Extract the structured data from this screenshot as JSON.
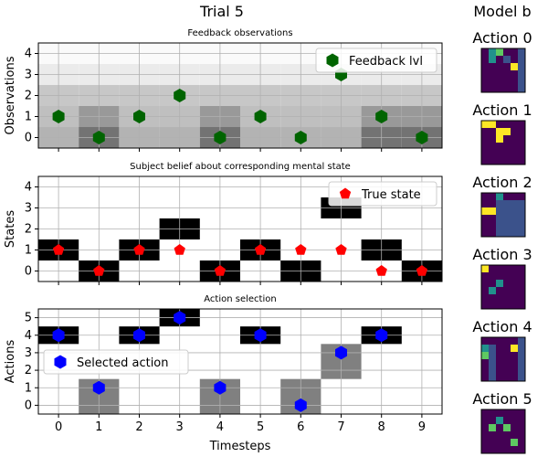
{
  "figure": {
    "title": "Trial 5"
  },
  "chart_data": [
    {
      "type": "scatter",
      "title": "Feedback observations",
      "ylabel": "Observations",
      "xlabel": "",
      "xlim": [
        -0.5,
        9.5
      ],
      "ylim": [
        -0.5,
        4.5
      ],
      "yticks": [
        0,
        1,
        2,
        3,
        4
      ],
      "grid": true,
      "legend": {
        "position": "top-right",
        "label": "Feedback lvl"
      },
      "background_columns": [
        {
          "x": 0,
          "shades": [
            0.7,
            0.75,
            0.78,
            0.92,
            0.98
          ]
        },
        {
          "x": 1,
          "shades": [
            0.45,
            0.6,
            0.78,
            0.92,
            0.98
          ]
        },
        {
          "x": 2,
          "shades": [
            0.7,
            0.75,
            0.78,
            0.92,
            0.98
          ]
        },
        {
          "x": 3,
          "shades": [
            0.7,
            0.75,
            0.78,
            0.92,
            0.98
          ]
        },
        {
          "x": 4,
          "shades": [
            0.45,
            0.6,
            0.78,
            0.92,
            0.98
          ]
        },
        {
          "x": 5,
          "shades": [
            0.7,
            0.75,
            0.78,
            0.92,
            0.98
          ]
        },
        {
          "x": 6,
          "shades": [
            0.7,
            0.75,
            0.78,
            0.92,
            0.98
          ]
        },
        {
          "x": 7,
          "shades": [
            0.7,
            0.75,
            0.78,
            0.92,
            0.98
          ]
        },
        {
          "x": 8,
          "shades": [
            0.45,
            0.6,
            0.78,
            0.92,
            0.98
          ]
        },
        {
          "x": 9,
          "shades": [
            0.45,
            0.6,
            0.78,
            0.92,
            0.98
          ]
        }
      ],
      "series": [
        {
          "name": "Feedback lvl",
          "marker": "hexagon",
          "color": "#006400",
          "x": [
            0,
            1,
            2,
            3,
            4,
            5,
            6,
            7,
            8,
            9
          ],
          "y": [
            1,
            0,
            1,
            2,
            0,
            1,
            0,
            3,
            1,
            0
          ]
        }
      ]
    },
    {
      "type": "scatter",
      "title": "Subject belief about corresponding mental state",
      "ylabel": "States",
      "xlabel": "",
      "xlim": [
        -0.5,
        9.5
      ],
      "ylim": [
        -0.5,
        4.5
      ],
      "yticks": [
        0,
        1,
        2,
        3,
        4
      ],
      "grid": true,
      "legend": {
        "position": "top-right",
        "label": "True state"
      },
      "belief_cells": [
        {
          "x": 0,
          "y": 1,
          "shade": 0.0
        },
        {
          "x": 1,
          "y": 0,
          "shade": 0.0
        },
        {
          "x": 2,
          "y": 1,
          "shade": 0.0
        },
        {
          "x": 3,
          "y": 2,
          "shade": 0.0
        },
        {
          "x": 4,
          "y": 0,
          "shade": 0.0
        },
        {
          "x": 5,
          "y": 1,
          "shade": 0.0
        },
        {
          "x": 6,
          "y": 0,
          "shade": 0.0
        },
        {
          "x": 7,
          "y": 3,
          "shade": 0.0
        },
        {
          "x": 8,
          "y": 1,
          "shade": 0.0
        },
        {
          "x": 9,
          "y": 0,
          "shade": 0.0
        }
      ],
      "series": [
        {
          "name": "True state",
          "marker": "pentagon",
          "color": "#ff0000",
          "x": [
            0,
            1,
            2,
            3,
            4,
            5,
            6,
            7,
            8,
            9
          ],
          "y": [
            1,
            0,
            1,
            1,
            0,
            1,
            1,
            1,
            0,
            0
          ]
        }
      ]
    },
    {
      "type": "scatter",
      "title": "Action selection",
      "ylabel": "Actions",
      "xlabel": "Timesteps",
      "xlim": [
        -0.5,
        9.5
      ],
      "ylim": [
        -0.5,
        5.5
      ],
      "xticks": [
        0,
        1,
        2,
        3,
        4,
        5,
        6,
        7,
        8,
        9
      ],
      "yticks": [
        0,
        1,
        2,
        3,
        4,
        5
      ],
      "grid": true,
      "legend": {
        "position": "middle-left",
        "label": "Selected action"
      },
      "action_cells": [
        {
          "x": 0,
          "y0": 3.5,
          "y1": 4.5,
          "shade": 0.0
        },
        {
          "x": 1,
          "y0": -0.5,
          "y1": 1.5,
          "shade": 0.5
        },
        {
          "x": 2,
          "y0": 3.5,
          "y1": 4.5,
          "shade": 0.0
        },
        {
          "x": 3,
          "y0": 4.5,
          "y1": 5.5,
          "shade": 0.0
        },
        {
          "x": 4,
          "y0": -0.5,
          "y1": 1.5,
          "shade": 0.5
        },
        {
          "x": 5,
          "y0": 3.5,
          "y1": 4.5,
          "shade": 0.0
        },
        {
          "x": 6,
          "y0": -0.5,
          "y1": 1.5,
          "shade": 0.5
        },
        {
          "x": 7,
          "y0": 1.5,
          "y1": 3.5,
          "shade": 0.5
        },
        {
          "x": 8,
          "y0": 3.5,
          "y1": 4.5,
          "shade": 0.0
        }
      ],
      "series": [
        {
          "name": "Selected action",
          "marker": "hexagon",
          "color": "#0000ff",
          "x": [
            0,
            1,
            2,
            3,
            4,
            5,
            6,
            7,
            8
          ],
          "y": [
            4,
            1,
            4,
            5,
            1,
            4,
            0,
            3,
            4
          ]
        }
      ]
    }
  ],
  "model": {
    "title": "Model b",
    "palette": [
      "#440154",
      "#3b528b",
      "#21918c",
      "#5ec962",
      "#fde725"
    ],
    "actions": [
      {
        "label": "Action 0",
        "matrix": [
          [
            0,
            2,
            3,
            0,
            0,
            1
          ],
          [
            0,
            2,
            0,
            1,
            0,
            1
          ],
          [
            0,
            0,
            0,
            0,
            4,
            1
          ],
          [
            0,
            0,
            0,
            0,
            0,
            1
          ],
          [
            0,
            0,
            0,
            0,
            0,
            1
          ],
          [
            0,
            0,
            0,
            0,
            0,
            1
          ]
        ]
      },
      {
        "label": "Action 1",
        "matrix": [
          [
            4,
            4,
            0,
            0,
            0,
            0
          ],
          [
            0,
            0,
            4,
            4,
            0,
            0
          ],
          [
            0,
            0,
            4,
            0,
            0,
            0
          ],
          [
            0,
            0,
            0,
            0,
            0,
            0
          ],
          [
            0,
            0,
            0,
            0,
            0,
            0
          ],
          [
            0,
            0,
            0,
            0,
            0,
            0
          ]
        ]
      },
      {
        "label": "Action 2",
        "matrix": [
          [
            0,
            0,
            2,
            0,
            0,
            0
          ],
          [
            0,
            0,
            1,
            1,
            1,
            1
          ],
          [
            4,
            4,
            1,
            1,
            1,
            1
          ],
          [
            0,
            0,
            1,
            1,
            1,
            1
          ],
          [
            0,
            0,
            1,
            1,
            1,
            1
          ],
          [
            0,
            0,
            1,
            1,
            1,
            1
          ]
        ]
      },
      {
        "label": "Action 3",
        "matrix": [
          [
            4,
            0,
            0,
            0,
            0,
            0
          ],
          [
            0,
            0,
            0,
            0,
            0,
            0
          ],
          [
            0,
            0,
            2,
            0,
            0,
            0
          ],
          [
            0,
            2,
            0,
            0,
            0,
            0
          ],
          [
            0,
            0,
            0,
            0,
            0,
            0
          ],
          [
            0,
            0,
            0,
            0,
            0,
            0
          ]
        ]
      },
      {
        "label": "Action 4",
        "matrix": [
          [
            0,
            0,
            0,
            0,
            0,
            1
          ],
          [
            2,
            1,
            0,
            0,
            4,
            1
          ],
          [
            3,
            1,
            0,
            0,
            0,
            1
          ],
          [
            0,
            1,
            0,
            0,
            0,
            1
          ],
          [
            0,
            1,
            0,
            0,
            0,
            1
          ],
          [
            0,
            1,
            0,
            0,
            0,
            1
          ]
        ]
      },
      {
        "label": "Action 5",
        "matrix": [
          [
            0,
            0,
            0,
            0,
            0,
            0
          ],
          [
            0,
            0,
            2,
            0,
            0,
            0
          ],
          [
            0,
            3,
            0,
            3,
            0,
            0
          ],
          [
            0,
            0,
            0,
            0,
            0,
            0
          ],
          [
            0,
            0,
            0,
            0,
            3,
            0
          ],
          [
            0,
            0,
            0,
            0,
            0,
            0
          ]
        ]
      }
    ]
  }
}
